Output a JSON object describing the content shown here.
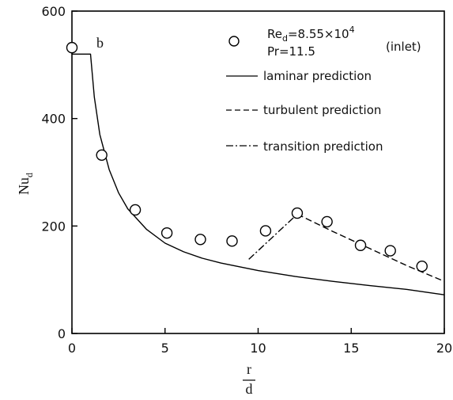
{
  "chart_data": {
    "type": "scatter",
    "xlim": [
      0,
      20
    ],
    "ylim": [
      0,
      600
    ],
    "xticks": [
      0,
      5,
      10,
      15,
      20
    ],
    "yticks": [
      0,
      200,
      400,
      600
    ],
    "xlabel": {
      "num": "r",
      "den": "d"
    },
    "ylabel": {
      "main": "Nu",
      "sub": "d"
    },
    "curve_tag": "b",
    "conditions": {
      "re_main": "Re",
      "re_sub": "d",
      "re_value": "=8.55×10",
      "re_exp": "4",
      "pr": "Pr=11.5",
      "location": "(inlet)"
    },
    "series": [
      {
        "name": "",
        "style": "marker-open-circle",
        "x": [
          0.0,
          1.6,
          3.4,
          5.1,
          6.9,
          8.6,
          10.4,
          12.1,
          13.7,
          15.5,
          17.1,
          18.8
        ],
        "y": [
          532,
          332,
          230,
          187,
          175,
          172,
          191,
          224,
          208,
          164,
          154,
          125
        ]
      },
      {
        "name": "laminar prediction",
        "style": "solid",
        "x": [
          0,
          1.0,
          1.05,
          1.2,
          1.5,
          2.0,
          2.5,
          3.0,
          4.0,
          5.0,
          6.0,
          7.0,
          8.0,
          10.0,
          12.0,
          14.0,
          16.0,
          18.0,
          20.0
        ],
        "y": [
          520,
          520,
          500,
          440,
          370,
          305,
          262,
          232,
          194,
          168,
          152,
          140,
          131,
          117,
          106,
          97,
          89,
          82,
          72
        ]
      },
      {
        "name": "turbulent prediction",
        "style": "dashed",
        "x": [
          12.1,
          14.0,
          16.0,
          18.0,
          20.0
        ],
        "y": [
          222,
          190,
          158,
          126,
          97
        ]
      },
      {
        "name": "transition prediction",
        "style": "dashdot",
        "x": [
          9.5,
          12.1
        ],
        "y": [
          138,
          222
        ]
      }
    ]
  }
}
